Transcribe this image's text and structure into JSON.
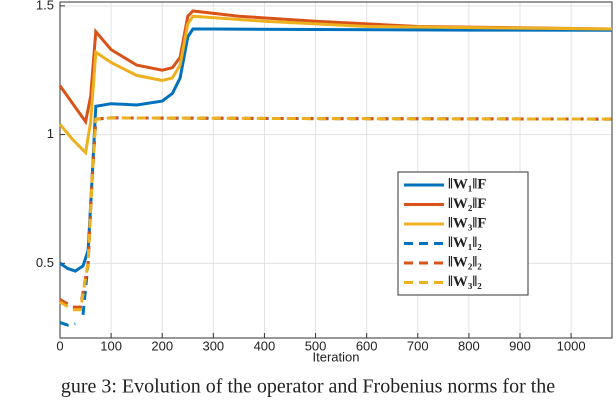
{
  "chart_data": {
    "type": "line",
    "xlabel": "Iteration",
    "caption": "gure 3: Evolution of the operator and Frobenius norms for the",
    "xlim": [
      0,
      1080
    ],
    "ylim": [
      0.21,
      1.515
    ],
    "xticks": [
      0,
      100,
      200,
      300,
      400,
      500,
      600,
      700,
      800,
      900,
      1000
    ],
    "yticks": [
      0.5,
      1,
      1.5
    ],
    "grid": true,
    "series": [
      {
        "name": "‖W₁‖F",
        "color": "#0072bd",
        "dash": false,
        "x": [
          0,
          15,
          30,
          45,
          55,
          62,
          70,
          100,
          150,
          200,
          220,
          235,
          250,
          260,
          300,
          500,
          800,
          1080
        ],
        "values": [
          0.5,
          0.48,
          0.47,
          0.49,
          0.55,
          0.8,
          1.11,
          1.12,
          1.115,
          1.13,
          1.16,
          1.22,
          1.38,
          1.41,
          1.41,
          1.408,
          1.406,
          1.405
        ]
      },
      {
        "name": "‖W₂‖F",
        "color": "#d95319",
        "dash": false,
        "x": [
          0,
          25,
          50,
          60,
          70,
          100,
          150,
          200,
          220,
          235,
          250,
          260,
          350,
          500,
          700,
          1080
        ],
        "values": [
          1.19,
          1.12,
          1.05,
          1.15,
          1.4,
          1.33,
          1.27,
          1.25,
          1.26,
          1.3,
          1.46,
          1.48,
          1.46,
          1.44,
          1.42,
          1.41
        ]
      },
      {
        "name": "‖W₃‖F",
        "color": "#edb120",
        "dash": false,
        "x": [
          0,
          25,
          50,
          60,
          70,
          100,
          150,
          200,
          220,
          235,
          250,
          260,
          400,
          600,
          1080
        ],
        "values": [
          1.04,
          0.98,
          0.93,
          1.05,
          1.32,
          1.28,
          1.23,
          1.21,
          1.22,
          1.27,
          1.43,
          1.46,
          1.44,
          1.42,
          1.41
        ]
      },
      {
        "name": "‖W₁‖₂",
        "color": "#0072bd",
        "dash": true,
        "x": [
          0,
          15,
          30,
          40,
          45,
          55,
          62,
          70,
          100,
          500,
          1080
        ],
        "values": [
          0.27,
          0.26,
          0.265,
          null,
          0.3,
          0.5,
          0.8,
          1.06,
          1.065,
          1.062,
          1.06
        ]
      },
      {
        "name": "‖W₂‖₂",
        "color": "#d95319",
        "dash": true,
        "x": [
          0,
          25,
          40,
          55,
          62,
          70,
          100,
          500,
          1080
        ],
        "values": [
          0.36,
          0.33,
          0.33,
          0.5,
          0.8,
          1.06,
          1.065,
          1.062,
          1.06
        ]
      },
      {
        "name": "‖W₃‖₂",
        "color": "#edb120",
        "dash": true,
        "x": [
          0,
          25,
          40,
          55,
          62,
          70,
          100,
          500,
          1080
        ],
        "values": [
          0.35,
          0.32,
          0.32,
          0.5,
          0.8,
          1.06,
          1.065,
          1.062,
          1.06
        ]
      }
    ]
  }
}
